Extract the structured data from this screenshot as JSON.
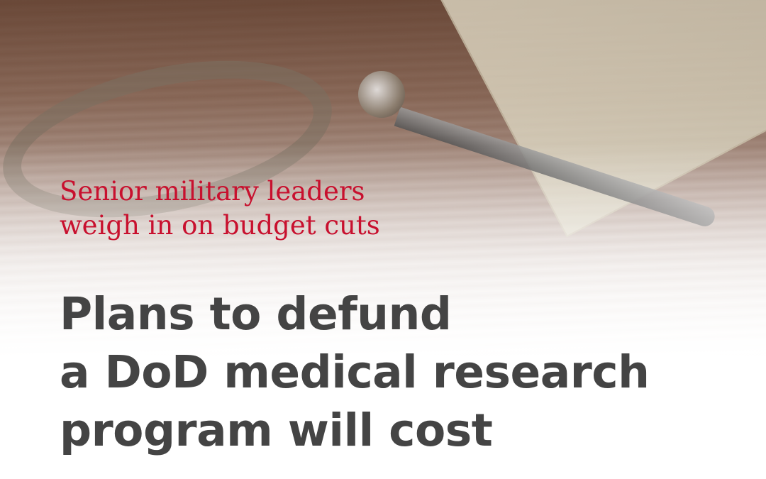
{
  "colors": {
    "subtitle": "#c8102e",
    "headline": "#444444"
  },
  "image": {
    "description_icon": "scissors-cutting-money-photo"
  },
  "subtitle": {
    "lines": [
      "Senior military leaders",
      "weigh in on budget cuts"
    ]
  },
  "headline": {
    "lines": [
      "Plans to defund",
      "a DoD medical research",
      "program will cost"
    ]
  }
}
